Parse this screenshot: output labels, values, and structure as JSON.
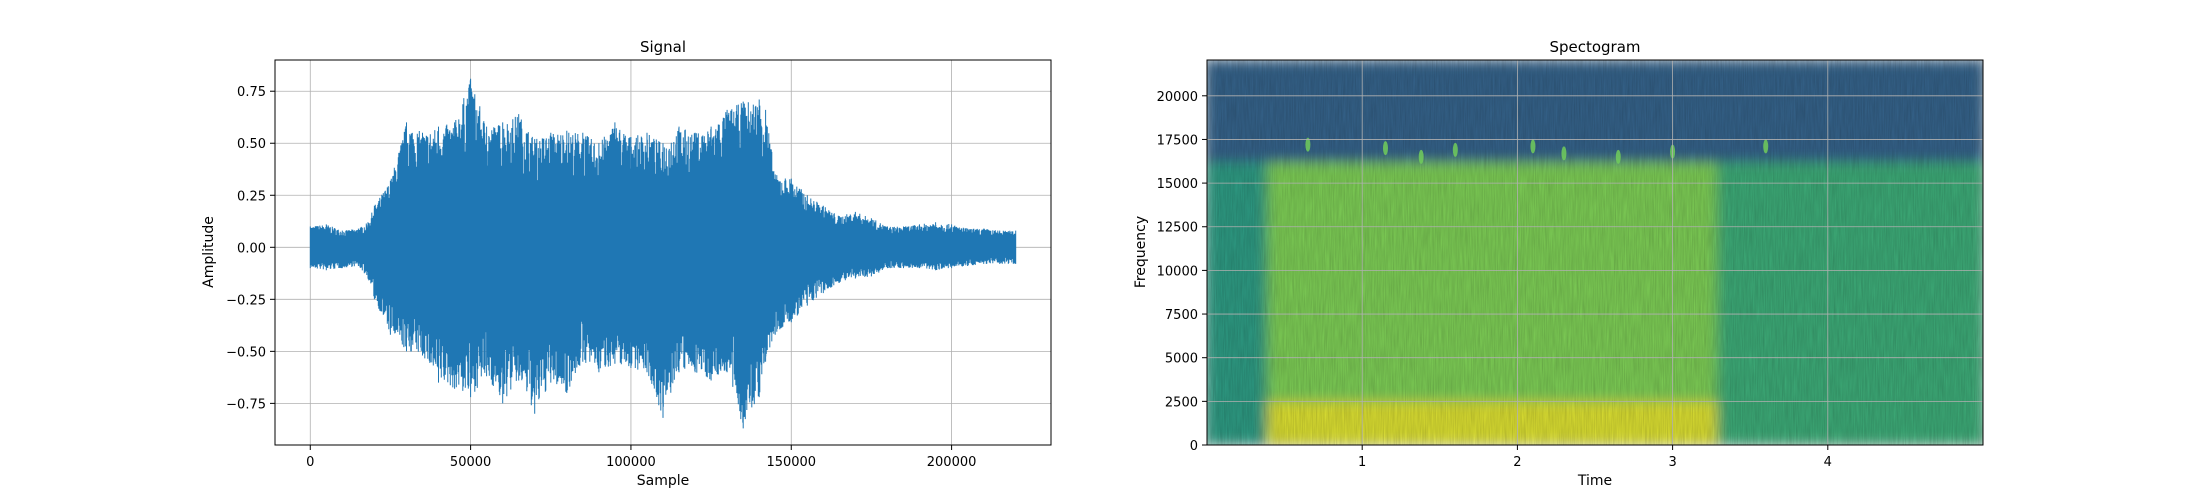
{
  "chart_data": [
    {
      "type": "line",
      "title": "Signal",
      "xlabel": "Sample",
      "ylabel": "Amplitude",
      "xlim": [
        -11000,
        231000
      ],
      "ylim": [
        -0.95,
        0.9
      ],
      "xticks": [
        0,
        50000,
        100000,
        150000,
        200000
      ],
      "xtick_labels": [
        "0",
        "50000",
        "100000",
        "150000",
        "200000"
      ],
      "yticks": [
        -0.75,
        -0.5,
        -0.25,
        0.0,
        0.25,
        0.5,
        0.75
      ],
      "ytick_labels": [
        "−0.75",
        "−0.50",
        "−0.25",
        "0.00",
        "0.25",
        "0.50",
        "0.75"
      ],
      "grid": true,
      "color": "#1f77b4",
      "series": [
        {
          "x": [
            0,
            5000,
            10000,
            15000,
            18000,
            20000,
            25000,
            30000,
            35000,
            40000,
            45000,
            50000,
            55000,
            60000,
            65000,
            70000,
            75000,
            80000,
            85000,
            90000,
            95000,
            100000,
            105000,
            110000,
            115000,
            120000,
            125000,
            130000,
            135000,
            140000,
            142000,
            145000,
            150000,
            155000,
            160000,
            165000,
            170000,
            175000,
            180000,
            185000,
            190000,
            195000,
            200000,
            205000,
            210000,
            215000,
            220000
          ],
          "y_max": [
            0.1,
            0.11,
            0.08,
            0.09,
            0.12,
            0.2,
            0.32,
            0.6,
            0.55,
            0.58,
            0.6,
            0.81,
            0.58,
            0.6,
            0.64,
            0.52,
            0.55,
            0.56,
            0.55,
            0.5,
            0.6,
            0.53,
            0.55,
            0.5,
            0.58,
            0.55,
            0.58,
            0.66,
            0.7,
            0.71,
            0.66,
            0.35,
            0.33,
            0.25,
            0.2,
            0.15,
            0.17,
            0.14,
            0.1,
            0.1,
            0.11,
            0.12,
            0.11,
            0.09,
            0.09,
            0.08,
            0.08
          ],
          "y_min": [
            -0.1,
            -0.11,
            -0.1,
            -0.09,
            -0.15,
            -0.25,
            -0.42,
            -0.5,
            -0.52,
            -0.65,
            -0.68,
            -0.72,
            -0.62,
            -0.75,
            -0.64,
            -0.8,
            -0.65,
            -0.7,
            -0.55,
            -0.6,
            -0.56,
            -0.58,
            -0.6,
            -0.82,
            -0.6,
            -0.6,
            -0.64,
            -0.6,
            -0.87,
            -0.72,
            -0.55,
            -0.42,
            -0.36,
            -0.28,
            -0.22,
            -0.17,
            -0.15,
            -0.14,
            -0.1,
            -0.1,
            -0.1,
            -0.11,
            -0.1,
            -0.09,
            -0.08,
            -0.08,
            -0.08
          ]
        }
      ]
    },
    {
      "type": "heatmap",
      "title": "Spectogram",
      "xlabel": "Time",
      "ylabel": "Frequency",
      "xlim": [
        0,
        5.0
      ],
      "ylim": [
        0,
        22050
      ],
      "xticks": [
        1,
        2,
        3,
        4
      ],
      "xtick_labels": [
        "1",
        "2",
        "3",
        "4"
      ],
      "yticks": [
        0,
        2500,
        5000,
        7500,
        10000,
        12500,
        15000,
        17500,
        20000
      ],
      "ytick_labels": [
        "0",
        "2500",
        "5000",
        "7500",
        "10000",
        "12500",
        "15000",
        "17500",
        "20000"
      ],
      "grid": true,
      "colormap": "viridis",
      "regions": [
        {
          "time": [
            0,
            0.4
          ],
          "freq": [
            0,
            16200
          ],
          "level": 0.55
        },
        {
          "time": [
            0.4,
            3.3
          ],
          "freq": [
            0,
            2500
          ],
          "level": 0.95
        },
        {
          "time": [
            0.4,
            3.3
          ],
          "freq": [
            2500,
            16200
          ],
          "level": 0.8
        },
        {
          "time": [
            3.3,
            5.0
          ],
          "freq": [
            0,
            16200
          ],
          "level": 0.62
        },
        {
          "time": [
            0,
            5.0
          ],
          "freq": [
            16200,
            22050
          ],
          "level": 0.32
        }
      ],
      "peaks": [
        {
          "time": 0.65,
          "freq": 17200
        },
        {
          "time": 1.15,
          "freq": 17000
        },
        {
          "time": 1.38,
          "freq": 16500
        },
        {
          "time": 1.6,
          "freq": 16900
        },
        {
          "time": 2.1,
          "freq": 17100
        },
        {
          "time": 2.3,
          "freq": 16700
        },
        {
          "time": 2.65,
          "freq": 16500
        },
        {
          "time": 3.0,
          "freq": 16800
        },
        {
          "time": 3.6,
          "freq": 17100
        }
      ]
    }
  ]
}
